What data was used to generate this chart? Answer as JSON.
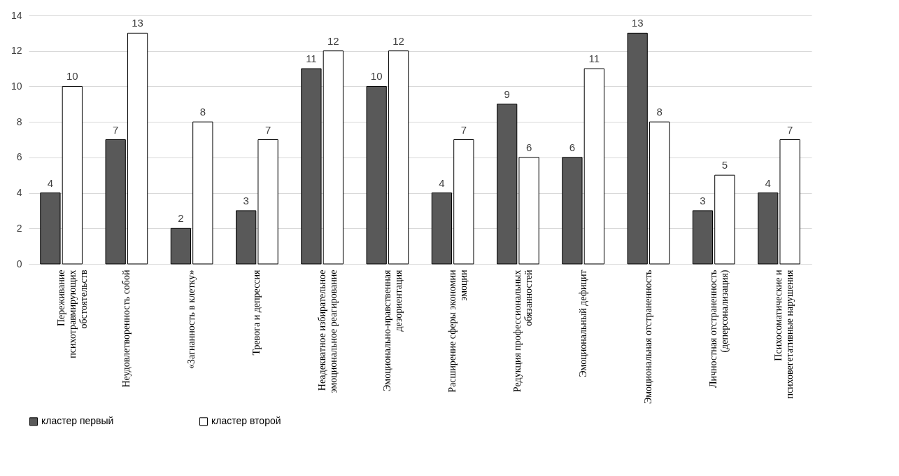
{
  "chart_data": {
    "type": "bar",
    "categories": [
      "Переживание психотравмирующих обстоятельств",
      "Неудовлетворенность собой",
      "«Загнанность в клетку»",
      "Тревога и депрессия",
      "Неадекватное избирательное эмоциональное реагирование",
      "Эмоционально-нравственная дезориентация",
      "Расширение сферы экономии эмоции",
      "Редукция профессиональных обязанностей",
      "Эмоциональный дефицит",
      "Эмоциональная отстраненность",
      "Личностная отстраненность (деперсонализация)",
      "Психосоматические и психовегетативные нарушения"
    ],
    "series": [
      {
        "name": "кластер первый",
        "color": "#595959",
        "values": [
          4,
          7,
          2,
          3,
          11,
          10,
          4,
          9,
          6,
          13,
          3,
          4
        ]
      },
      {
        "name": "кластер второй",
        "color": "#ffffff",
        "values": [
          10,
          13,
          8,
          7,
          12,
          12,
          7,
          6,
          11,
          8,
          5,
          7
        ]
      }
    ],
    "ylim": [
      0,
      14
    ],
    "yticks": [
      0,
      2,
      4,
      6,
      8,
      10,
      12,
      14
    ],
    "grid": "y",
    "legend": "bottom",
    "data_labels": true
  }
}
